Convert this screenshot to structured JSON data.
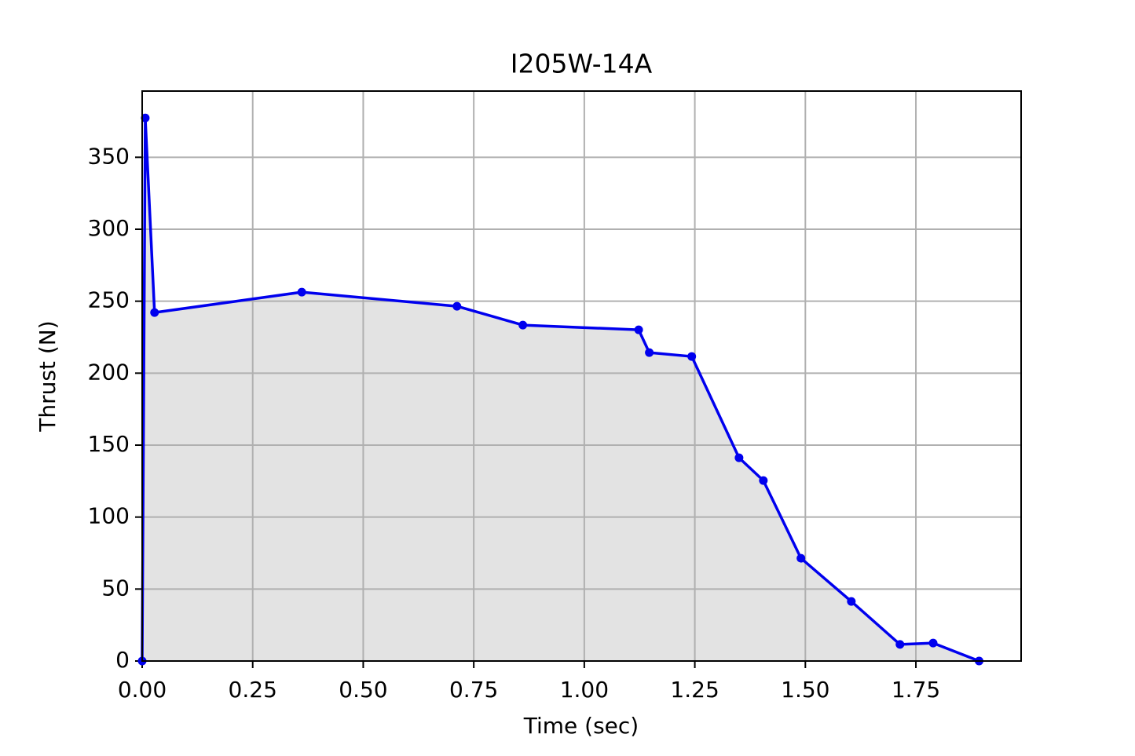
{
  "chart_data": {
    "type": "line",
    "title": "I205W-14A",
    "x_label": "Time (sec)",
    "y_label": "Thrust (N)",
    "x": [
      0,
      0.007,
      0.028,
      0.361,
      0.712,
      0.861,
      1.123,
      1.147,
      1.243,
      1.35,
      1.405,
      1.49,
      1.604,
      1.714,
      1.789,
      1.893
    ],
    "series": [
      {
        "color": "#0000ee",
        "values": [
          0,
          377.3,
          242.1,
          256.3,
          246.5,
          233.4,
          230.1,
          214.3,
          211.6,
          141.2,
          125.4,
          71.4,
          41.4,
          11.5,
          12.5,
          0
        ]
      }
    ],
    "fill_color": "#e3e3e3",
    "xlim": [
      0,
      1.988
    ],
    "ylim": [
      0,
      396
    ],
    "xticks": [
      {
        "value": 0,
        "label": "0.00"
      },
      0.25,
      {
        "value": 0.5,
        "label": "0.50"
      },
      0.75,
      {
        "value": 1,
        "label": "1.00"
      },
      1.25,
      {
        "value": 1.5,
        "label": "1.50"
      },
      1.75
    ],
    "yticks": [
      0,
      50,
      100,
      150,
      200,
      250,
      300,
      350
    ],
    "grid": true
  }
}
